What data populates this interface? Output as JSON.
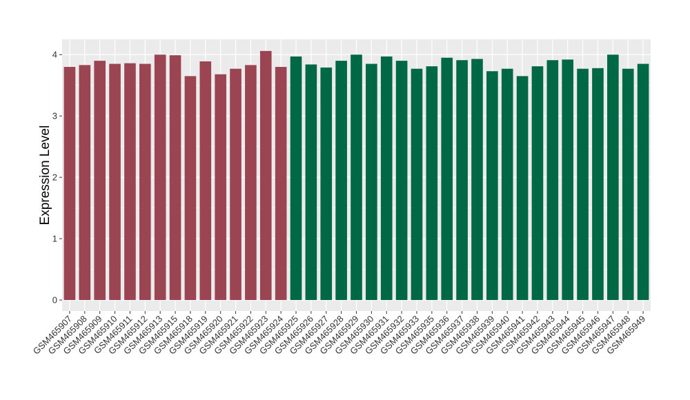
{
  "chart_data": {
    "type": "bar",
    "title": "",
    "xlabel": "",
    "ylabel": "Expression Level",
    "ylim": [
      -0.18,
      4.25
    ],
    "yticks": [
      0,
      1,
      2,
      3,
      4
    ],
    "grid": true,
    "colors": {
      "group1": "#9b4452",
      "group2": "#006845",
      "panel": "#ebebeb",
      "grid": "#ffffff"
    },
    "categories": [
      "GSM465907",
      "GSM465908",
      "GSM465909",
      "GSM465910",
      "GSM465911",
      "GSM465912",
      "GSM465913",
      "GSM465915",
      "GSM465918",
      "GSM465919",
      "GSM465920",
      "GSM465921",
      "GSM465922",
      "GSM465923",
      "GSM465924",
      "GSM465925",
      "GSM465926",
      "GSM465927",
      "GSM465928",
      "GSM465929",
      "GSM465930",
      "GSM465931",
      "GSM465932",
      "GSM465933",
      "GSM465935",
      "GSM465936",
      "GSM465937",
      "GSM465938",
      "GSM465939",
      "GSM465940",
      "GSM465941",
      "GSM465942",
      "GSM465943",
      "GSM465944",
      "GSM465945",
      "GSM465946",
      "GSM465947",
      "GSM465948",
      "GSM465949"
    ],
    "values": [
      3.8,
      3.83,
      3.9,
      3.85,
      3.86,
      3.85,
      4.0,
      3.99,
      3.65,
      3.89,
      3.68,
      3.77,
      3.83,
      4.06,
      3.8,
      3.97,
      3.84,
      3.79,
      3.9,
      4.0,
      3.85,
      3.97,
      3.9,
      3.77,
      3.81,
      3.95,
      3.91,
      3.93,
      3.73,
      3.77,
      3.65,
      3.81,
      3.91,
      3.92,
      3.77,
      3.78,
      4.0,
      3.77,
      3.85
    ],
    "groups": [
      1,
      1,
      1,
      1,
      1,
      1,
      1,
      1,
      1,
      1,
      1,
      1,
      1,
      1,
      1,
      2,
      2,
      2,
      2,
      2,
      2,
      2,
      2,
      2,
      2,
      2,
      2,
      2,
      2,
      2,
      2,
      2,
      2,
      2,
      2,
      2,
      2,
      2,
      2
    ]
  }
}
